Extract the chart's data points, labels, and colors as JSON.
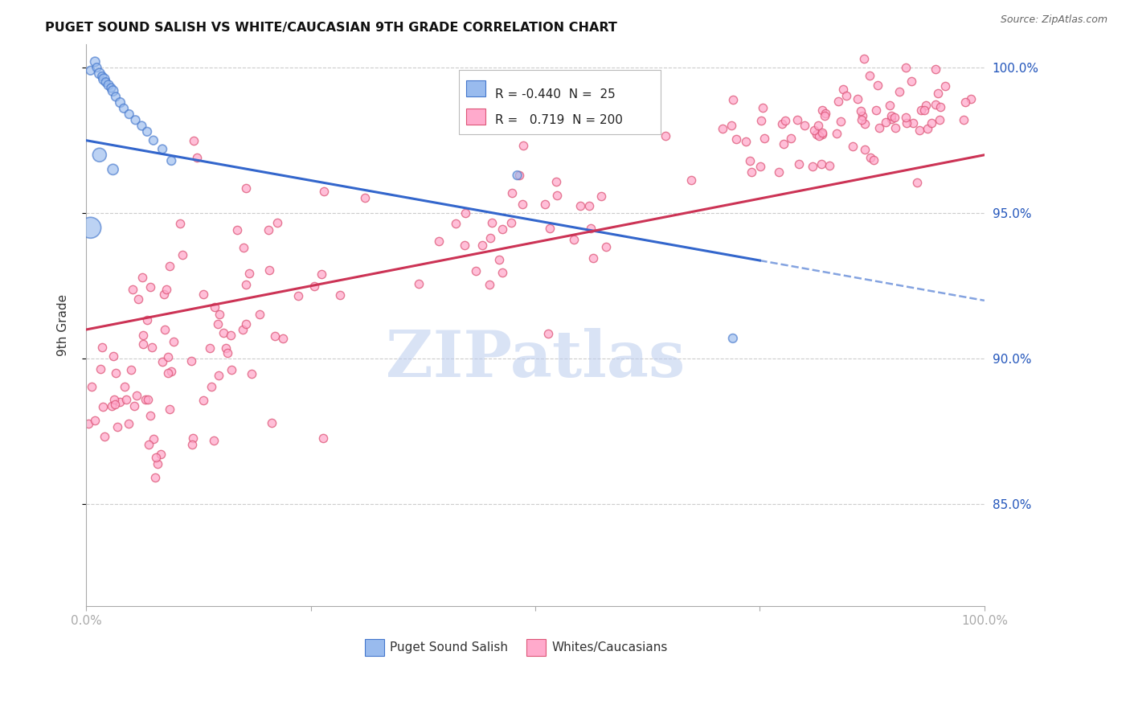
{
  "title": "PUGET SOUND SALISH VS WHITE/CAUCASIAN 9TH GRADE CORRELATION CHART",
  "source": "Source: ZipAtlas.com",
  "ylabel": "9th Grade",
  "legend_label_blue": "Puget Sound Salish",
  "legend_label_pink": "Whites/Caucasians",
  "blue_fill": "#99BBEE",
  "blue_edge": "#4477CC",
  "pink_fill": "#FFAACC",
  "pink_edge": "#DD5577",
  "blue_line_color": "#3366CC",
  "pink_line_color": "#CC3355",
  "watermark": "ZIPatlas",
  "watermark_color": "#BBCCEE",
  "xlim": [
    0.0,
    1.0
  ],
  "ylim": [
    0.815,
    1.008
  ],
  "yticks": [
    0.85,
    0.9,
    0.95,
    1.0
  ],
  "ytick_labels": [
    "85.0%",
    "90.0%",
    "95.0%",
    "100.0%"
  ],
  "blue_R": -0.44,
  "pink_R": 0.719,
  "blue_N": 25,
  "pink_N": 200,
  "blue_line_start_y": 0.975,
  "blue_line_end_y": 0.92,
  "pink_line_start_y": 0.91,
  "pink_line_end_y": 0.97
}
